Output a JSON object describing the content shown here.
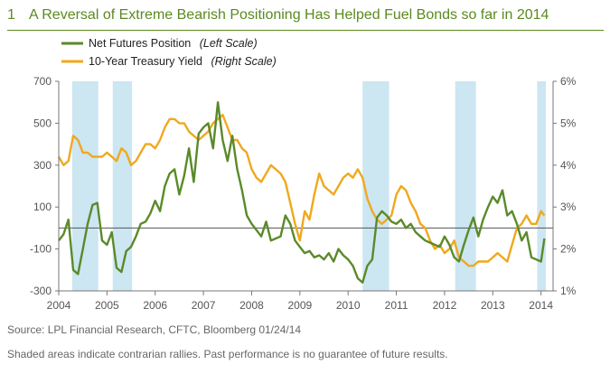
{
  "figure": {
    "number": "1",
    "title": "A Reversal of Extreme Bearish Positioning Has Helped Fuel Bonds so far in 2014"
  },
  "footer": {
    "source": "Source: LPL Financial Research, CFTC, Bloomberg   01/24/14",
    "note": "Shaded areas indicate contrarian rallies. Past performance is no guarantee of future results."
  },
  "colors": {
    "accent": "#5a8a1e",
    "green": "#5a8a2a",
    "orange": "#f0a81e",
    "shade": "#cce6f2",
    "zero_line": "#555555"
  },
  "chart_data": {
    "type": "line",
    "legend_placement": "top-left",
    "x_range": [
      2004.0,
      2014.25
    ],
    "x_ticks": [
      "2004",
      "2005",
      "2006",
      "2007",
      "2008",
      "2009",
      "2010",
      "2011",
      "2012",
      "2013",
      "2014"
    ],
    "left_axis": {
      "range": [
        -300,
        700
      ],
      "ticks": [
        "700",
        "500",
        "300",
        "100",
        "-100",
        "-300"
      ],
      "tick_values": [
        700,
        500,
        300,
        100,
        -100,
        -300
      ]
    },
    "right_axis": {
      "range": [
        1,
        6
      ],
      "ticks": [
        "6%",
        "5%",
        "4%",
        "3%",
        "2%",
        "1%"
      ],
      "tick_values": [
        6,
        5,
        4,
        3,
        2,
        1
      ]
    },
    "zero_line": 0,
    "shaded_periods": [
      [
        2004.28,
        2004.82
      ],
      [
        2005.12,
        2005.52
      ],
      [
        2010.3,
        2010.85
      ],
      [
        2012.22,
        2012.65
      ],
      [
        2013.92,
        2014.1
      ]
    ],
    "series": [
      {
        "name": "Net Futures Position",
        "scale": "(Left Scale)",
        "axis": "left",
        "x": [
          2004.0,
          2004.1,
          2004.2,
          2004.3,
          2004.4,
          2004.5,
          2004.6,
          2004.7,
          2004.8,
          2004.9,
          2005.0,
          2005.1,
          2005.2,
          2005.3,
          2005.4,
          2005.5,
          2005.6,
          2005.7,
          2005.8,
          2005.9,
          2006.0,
          2006.1,
          2006.2,
          2006.3,
          2006.4,
          2006.5,
          2006.6,
          2006.7,
          2006.8,
          2006.9,
          2007.0,
          2007.1,
          2007.2,
          2007.3,
          2007.4,
          2007.5,
          2007.6,
          2007.7,
          2007.8,
          2007.9,
          2008.0,
          2008.1,
          2008.2,
          2008.3,
          2008.4,
          2008.5,
          2008.6,
          2008.7,
          2008.8,
          2008.9,
          2009.0,
          2009.1,
          2009.2,
          2009.3,
          2009.4,
          2009.5,
          2009.6,
          2009.7,
          2009.8,
          2009.9,
          2010.0,
          2010.1,
          2010.2,
          2010.3,
          2010.4,
          2010.5,
          2010.6,
          2010.7,
          2010.8,
          2010.9,
          2011.0,
          2011.1,
          2011.2,
          2011.3,
          2011.4,
          2011.5,
          2011.6,
          2011.7,
          2011.8,
          2011.9,
          2012.0,
          2012.1,
          2012.2,
          2012.3,
          2012.4,
          2012.5,
          2012.6,
          2012.7,
          2012.8,
          2012.9,
          2013.0,
          2013.1,
          2013.2,
          2013.3,
          2013.4,
          2013.5,
          2013.6,
          2013.7,
          2013.8,
          2013.9,
          2014.0,
          2014.07
        ],
        "values": [
          -60,
          -30,
          40,
          -200,
          -220,
          -100,
          20,
          110,
          120,
          -60,
          -80,
          -20,
          -190,
          -210,
          -110,
          -90,
          -40,
          20,
          30,
          70,
          130,
          80,
          200,
          260,
          280,
          160,
          250,
          380,
          220,
          450,
          480,
          500,
          380,
          600,
          420,
          320,
          440,
          280,
          180,
          60,
          20,
          -10,
          -40,
          30,
          -60,
          -50,
          -40,
          60,
          20,
          -60,
          -90,
          -120,
          -110,
          -140,
          -130,
          -150,
          -120,
          -160,
          -100,
          -130,
          -150,
          -180,
          -240,
          -260,
          -180,
          -150,
          50,
          80,
          60,
          30,
          20,
          40,
          0,
          20,
          -20,
          -40,
          -60,
          -70,
          -80,
          -90,
          -40,
          -80,
          -140,
          -160,
          -80,
          -10,
          50,
          -40,
          40,
          100,
          150,
          120,
          180,
          60,
          80,
          20,
          -60,
          -20,
          -140,
          -150,
          -160,
          -50
        ]
      },
      {
        "name": "10-Year Treasury Yield",
        "scale": "(Right Scale)",
        "axis": "right",
        "x": [
          2004.0,
          2004.1,
          2004.2,
          2004.3,
          2004.4,
          2004.5,
          2004.6,
          2004.7,
          2004.8,
          2004.9,
          2005.0,
          2005.1,
          2005.2,
          2005.3,
          2005.4,
          2005.5,
          2005.6,
          2005.7,
          2005.8,
          2005.9,
          2006.0,
          2006.1,
          2006.2,
          2006.3,
          2006.4,
          2006.5,
          2006.6,
          2006.7,
          2006.8,
          2006.9,
          2007.0,
          2007.1,
          2007.2,
          2007.3,
          2007.4,
          2007.5,
          2007.6,
          2007.7,
          2007.8,
          2007.9,
          2008.0,
          2008.1,
          2008.2,
          2008.3,
          2008.4,
          2008.5,
          2008.6,
          2008.7,
          2008.8,
          2008.9,
          2009.0,
          2009.1,
          2009.2,
          2009.3,
          2009.4,
          2009.5,
          2009.6,
          2009.7,
          2009.8,
          2009.9,
          2010.0,
          2010.1,
          2010.2,
          2010.3,
          2010.4,
          2010.5,
          2010.6,
          2010.7,
          2010.8,
          2010.9,
          2011.0,
          2011.1,
          2011.2,
          2011.3,
          2011.4,
          2011.5,
          2011.6,
          2011.7,
          2011.8,
          2011.9,
          2012.0,
          2012.1,
          2012.2,
          2012.3,
          2012.4,
          2012.5,
          2012.6,
          2012.7,
          2012.8,
          2012.9,
          2013.0,
          2013.1,
          2013.2,
          2013.3,
          2013.4,
          2013.5,
          2013.6,
          2013.7,
          2013.8,
          2013.9,
          2014.0,
          2014.07
        ],
        "values": [
          4.2,
          4.0,
          4.1,
          4.7,
          4.6,
          4.3,
          4.3,
          4.2,
          4.2,
          4.2,
          4.3,
          4.2,
          4.1,
          4.4,
          4.3,
          4.0,
          4.1,
          4.3,
          4.5,
          4.5,
          4.4,
          4.6,
          4.9,
          5.1,
          5.1,
          5.0,
          5.0,
          4.8,
          4.7,
          4.6,
          4.7,
          4.8,
          5.0,
          5.1,
          5.2,
          4.9,
          4.6,
          4.6,
          4.4,
          4.3,
          3.9,
          3.7,
          3.6,
          3.8,
          4.0,
          3.9,
          3.8,
          3.6,
          3.1,
          2.6,
          2.2,
          2.9,
          2.7,
          3.3,
          3.8,
          3.5,
          3.4,
          3.3,
          3.5,
          3.7,
          3.8,
          3.7,
          3.9,
          3.7,
          3.2,
          2.9,
          2.7,
          2.6,
          2.7,
          2.8,
          3.3,
          3.5,
          3.4,
          3.1,
          2.9,
          2.6,
          2.5,
          2.2,
          2.0,
          2.1,
          1.9,
          2.0,
          2.2,
          1.8,
          1.7,
          1.6,
          1.6,
          1.7,
          1.7,
          1.7,
          1.8,
          1.9,
          1.8,
          1.7,
          2.1,
          2.5,
          2.6,
          2.8,
          2.6,
          2.6,
          2.9,
          2.8
        ]
      }
    ]
  }
}
